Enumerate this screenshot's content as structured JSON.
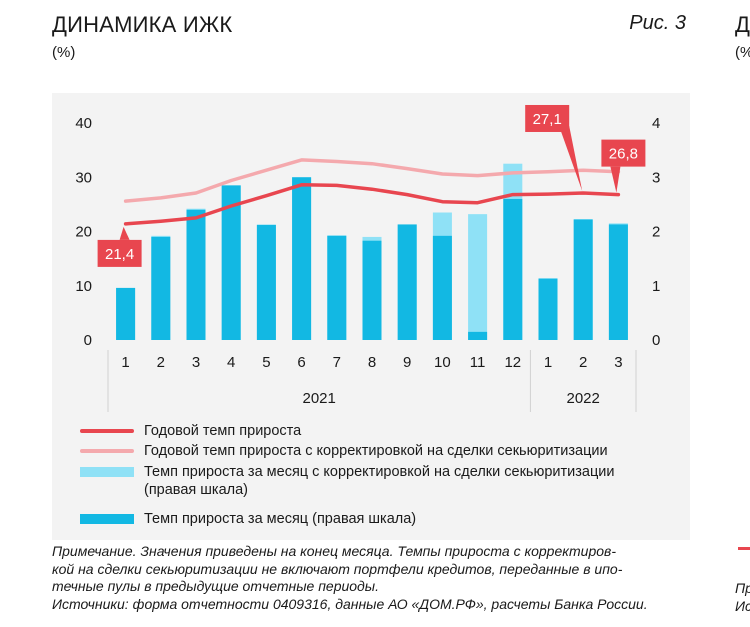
{
  "header": {
    "title": "ДИНАМИКА ИЖК",
    "unit": "(%)",
    "figure_label": "Рис. 3"
  },
  "cut_panel": {
    "title_fragment": "Д",
    "unit_fragment": "(%",
    "note_fragment_1": "Пр",
    "note_fragment_2": "Ис"
  },
  "colors": {
    "annual": "#e8464f",
    "annual_adj": "#f4a9ad",
    "monthly": "#12b8e3",
    "monthly_adj": "#8fe1f6",
    "panel_bg": "#f3f3f3"
  },
  "chart_data": {
    "type": "bar",
    "categories": [
      "1",
      "2",
      "3",
      "4",
      "5",
      "6",
      "7",
      "8",
      "9",
      "10",
      "11",
      "12",
      "1",
      "2",
      "3"
    ],
    "year_groups": [
      {
        "label": "2021",
        "span": 12
      },
      {
        "label": "2022",
        "span": 3
      }
    ],
    "left_axis": {
      "ylim": [
        0,
        40
      ],
      "ticks": [
        "0",
        "10",
        "20",
        "30",
        "40"
      ]
    },
    "right_axis": {
      "ylim": [
        0,
        4
      ],
      "ticks": [
        "0",
        "1",
        "2",
        "3",
        "4"
      ]
    },
    "series": [
      {
        "name": "Годовой темп прироста",
        "kind": "line",
        "axis": "left",
        "color": "#e8464f",
        "values": [
          21.4,
          21.9,
          22.5,
          24.7,
          26.6,
          28.6,
          28.5,
          27.8,
          26.8,
          25.5,
          25.3,
          26.8,
          26.9,
          27.1,
          26.8
        ]
      },
      {
        "name": "Годовой темп прироста с корректировкой на сделки секьюритизации",
        "kind": "line",
        "axis": "left",
        "color": "#f4a9ad",
        "values": [
          25.6,
          26.2,
          27.1,
          29.4,
          31.3,
          33.2,
          32.9,
          32.5,
          31.6,
          30.6,
          30.3,
          30.8,
          31.0,
          31.3,
          31.0
        ]
      },
      {
        "name": "Темп прироста за месяц с корректировкой на сделки секьюритизации\n(правая шкала)",
        "kind": "bar",
        "axis": "right",
        "color": "#8fe1f6",
        "values": [
          0.96,
          1.92,
          2.42,
          2.85,
          2.13,
          3.0,
          1.93,
          1.9,
          2.13,
          2.35,
          2.32,
          3.25,
          1.14,
          2.23,
          2.15
        ]
      },
      {
        "name": "Темп прироста за месяц (правая шкала)",
        "kind": "bar",
        "axis": "right",
        "color": "#12b8e3",
        "values": [
          0.96,
          1.9,
          2.4,
          2.85,
          2.12,
          3.0,
          1.92,
          1.83,
          2.13,
          1.92,
          0.15,
          2.6,
          1.13,
          2.22,
          2.13
        ]
      }
    ],
    "annotations": [
      {
        "text": "21,4",
        "series": 0,
        "index": 0,
        "position": "below-left"
      },
      {
        "text": "27,1",
        "series": 0,
        "index": 13,
        "position": "above-left"
      },
      {
        "text": "26,8",
        "series": 0,
        "index": 14,
        "position": "above"
      }
    ],
    "legend": {
      "position": "bottom"
    },
    "grid": false
  },
  "notes": {
    "line1": "Примечание. Значения приведены на конец месяца. Темпы прироста с корректиров-",
    "line2": "кой на сделки секьюритизации не включают портфели кредитов, переданные в ипо-",
    "line3": "течные пулы в предыдущие отчетные периоды.",
    "line4": "Источники: форма отчетности 0409316, данные АО «ДОМ.РФ», расчеты Банка России."
  }
}
